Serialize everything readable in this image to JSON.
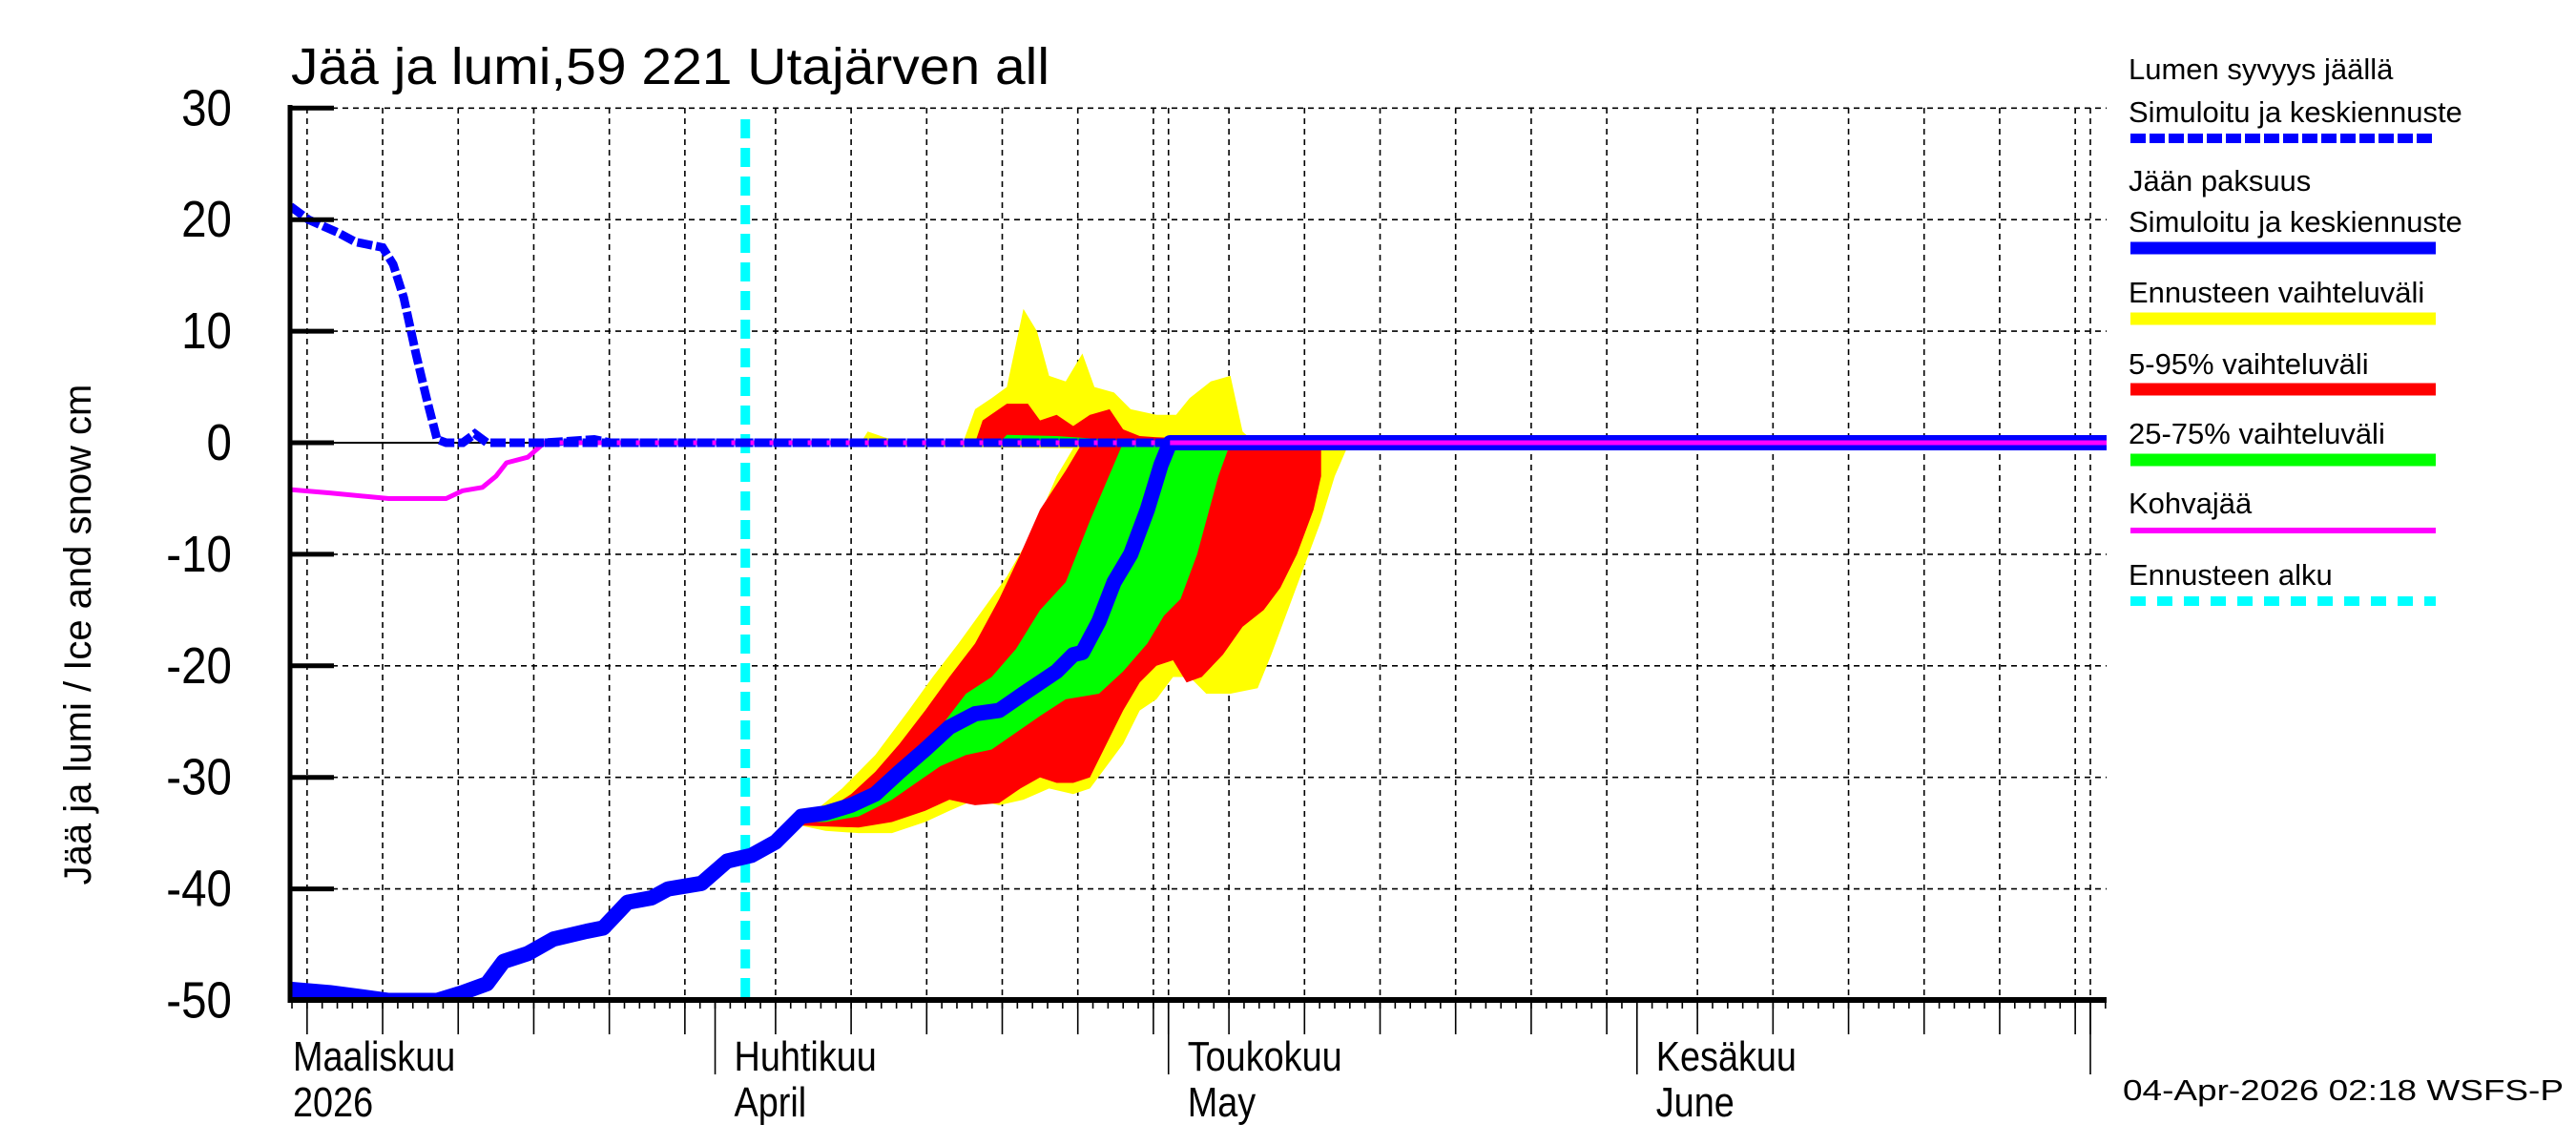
{
  "title": "Jää ja lumi,59 221 Utajärven all",
  "y_axis_label": "Jää ja lumi / Ice and snow    cm",
  "footer": "04-Apr-2026 02:18 WSFS-P",
  "x_axis": {
    "months": [
      {
        "line1": "Maaliskuu",
        "line2": "2026",
        "start_day": 0
      },
      {
        "line1": "Huhtikuu",
        "line2": "April",
        "start_day": 31
      },
      {
        "line1": "Toukokuu",
        "line2": "May",
        "start_day": 61
      },
      {
        "line1": "Kesäkuu",
        "line2": "June",
        "start_day": 92
      }
    ],
    "day_origin": "2026-03-01",
    "range_days": [
      2.9,
      123.1
    ]
  },
  "legend": [
    {
      "label_lines": [
        "Lumen syvyys jäällä",
        "Simuloitu ja keskiennuste"
      ],
      "color": "#0000ff",
      "style": "dashed-thick"
    },
    {
      "label_lines": [
        "Jään paksuus",
        "Simuloitu ja keskiennuste"
      ],
      "color": "#0000ff",
      "style": "solid-thick"
    },
    {
      "label_lines": [
        "Ennusteen vaihteluväli"
      ],
      "color": "#ffff00",
      "style": "band"
    },
    {
      "label_lines": [
        "5-95% vaihteluväli"
      ],
      "color": "#ff0000",
      "style": "band"
    },
    {
      "label_lines": [
        "25-75% vaihteluväli"
      ],
      "color": "#00ff00",
      "style": "band"
    },
    {
      "label_lines": [
        "Kohvajää"
      ],
      "color": "#ff00ff",
      "style": "solid-thin"
    },
    {
      "label_lines": [
        "Ennusteen alku"
      ],
      "color": "#00ffff",
      "style": "dotted"
    }
  ],
  "chart_data": {
    "type": "area",
    "title": "Jää ja lumi,59 221 Utajärven all",
    "xlabel": "",
    "ylabel": "Jää ja lumi / Ice and snow    cm",
    "ylim": [
      -50,
      30
    ],
    "yticks": [
      30,
      20,
      10,
      0,
      -10,
      -20,
      -30,
      -40,
      -50
    ],
    "x_unit": "days since 2026-03-01",
    "xlim": [
      2.9,
      123.1
    ],
    "grid": true,
    "grid_days": [
      4,
      9,
      14,
      19,
      24,
      29,
      35,
      40,
      45,
      50,
      55,
      60,
      61,
      65,
      70,
      75,
      80,
      85,
      90,
      96,
      101,
      106,
      111,
      116,
      121,
      122
    ],
    "forecast_start_day": 33,
    "legend_position": "right",
    "series": [
      {
        "name": "Lumen syvyys jäällä — Simuloitu ja keskiennuste",
        "color": "#0000ff",
        "style": "dashed",
        "points": [
          [
            2.9,
            21.2
          ],
          [
            4.1,
            20.0
          ],
          [
            6.1,
            18.8
          ],
          [
            7.2,
            18.0
          ],
          [
            9.0,
            17.5
          ],
          [
            9.7,
            16.0
          ],
          [
            10.4,
            13.0
          ],
          [
            11.2,
            8.0
          ],
          [
            11.9,
            4.0
          ],
          [
            12.6,
            0.3
          ],
          [
            13.2,
            0
          ],
          [
            14.3,
            0
          ],
          [
            15.1,
            0.8
          ],
          [
            15.9,
            0
          ],
          [
            19.7,
            0
          ],
          [
            23.0,
            0.3
          ],
          [
            24.1,
            0
          ],
          [
            123.1,
            0
          ]
        ]
      },
      {
        "name": "Jään paksuus — Simuloitu ja keskiennuste",
        "color": "#0000ff",
        "style": "solid-thick",
        "points": [
          [
            2.9,
            -49
          ],
          [
            5.5,
            -49.3
          ],
          [
            9.4,
            -50
          ],
          [
            12.6,
            -50
          ],
          [
            14.3,
            -49.3
          ],
          [
            15.9,
            -48.5
          ],
          [
            17.0,
            -46.5
          ],
          [
            18.6,
            -45.8
          ],
          [
            20.3,
            -44.5
          ],
          [
            22.5,
            -43.8
          ],
          [
            23.6,
            -43.5
          ],
          [
            25.2,
            -41.2
          ],
          [
            26.8,
            -40.8
          ],
          [
            27.9,
            -40.0
          ],
          [
            30.1,
            -39.5
          ],
          [
            31.8,
            -37.5
          ],
          [
            33.4,
            -37.0
          ],
          [
            35.0,
            -35.8
          ],
          [
            36.7,
            -33.5
          ],
          [
            38.3,
            -33.2
          ],
          [
            40.0,
            -32.5
          ],
          [
            41.6,
            -31.5
          ],
          [
            43.2,
            -29.5
          ],
          [
            44.9,
            -27.5
          ],
          [
            46.5,
            -25.5
          ],
          [
            48.2,
            -24.3
          ],
          [
            49.8,
            -24.0
          ],
          [
            51.4,
            -22.5
          ],
          [
            53.6,
            -20.5
          ],
          [
            54.7,
            -19.0
          ],
          [
            55.3,
            -18.8
          ],
          [
            56.4,
            -16.0
          ],
          [
            57.4,
            -12.5
          ],
          [
            58.5,
            -10.0
          ],
          [
            59.6,
            -6.0
          ],
          [
            60.5,
            -2.0
          ],
          [
            61.1,
            0
          ],
          [
            123.1,
            0
          ]
        ]
      },
      {
        "name": "Kohvajää",
        "color": "#ff00ff",
        "style": "solid-thin",
        "points": [
          [
            2.9,
            -4.2
          ],
          [
            5.5,
            -4.5
          ],
          [
            9.4,
            -5.0
          ],
          [
            13.2,
            -5.0
          ],
          [
            14.3,
            -4.3
          ],
          [
            15.6,
            -4.0
          ],
          [
            16.5,
            -3.0
          ],
          [
            17.2,
            -1.8
          ],
          [
            18.6,
            -1.3
          ],
          [
            19.7,
            0
          ],
          [
            123.1,
            0
          ]
        ]
      }
    ],
    "bands": [
      {
        "name": "Ennusteen vaihteluväli",
        "color": "#ffff00",
        "polygon": [
          [
            36.6,
            -33.5
          ],
          [
            37.8,
            -32.8
          ],
          [
            39.4,
            -31
          ],
          [
            41.6,
            -28
          ],
          [
            43.8,
            -24
          ],
          [
            45.4,
            -21
          ],
          [
            47.1,
            -18
          ],
          [
            48.7,
            -15
          ],
          [
            50.3,
            -12
          ],
          [
            52.0,
            -8
          ],
          [
            53.6,
            -3
          ],
          [
            54.7,
            -0.5
          ],
          [
            40.5,
            -0.3
          ],
          [
            41.1,
            1
          ],
          [
            42.2,
            0.5
          ],
          [
            43.6,
            0
          ],
          [
            47.4,
            0
          ],
          [
            48.2,
            3
          ],
          [
            49.3,
            4
          ],
          [
            50.3,
            5
          ],
          [
            51.4,
            12
          ],
          [
            52.3,
            10
          ],
          [
            53.1,
            6
          ],
          [
            54.2,
            5.5
          ],
          [
            55.3,
            8
          ],
          [
            56.1,
            5
          ],
          [
            57.4,
            4.5
          ],
          [
            58.5,
            3
          ],
          [
            60.2,
            2.5
          ],
          [
            61.5,
            2.5
          ],
          [
            62.4,
            4
          ],
          [
            63.8,
            5.5
          ],
          [
            65.1,
            6
          ],
          [
            65.9,
            1
          ],
          [
            66.7,
            0
          ],
          [
            72.8,
            -0.5
          ],
          [
            72.0,
            -3
          ],
          [
            71.1,
            -7
          ],
          [
            70.0,
            -11
          ],
          [
            68.9,
            -15
          ],
          [
            67.8,
            -19
          ],
          [
            66.9,
            -22
          ],
          [
            65.1,
            -22.5
          ],
          [
            63.5,
            -22.5
          ],
          [
            62.4,
            -21
          ],
          [
            61.3,
            -21
          ],
          [
            60.2,
            -23
          ],
          [
            59.1,
            -24
          ],
          [
            58.0,
            -27
          ],
          [
            56.9,
            -29
          ],
          [
            55.8,
            -31
          ],
          [
            54.7,
            -31.5
          ],
          [
            53.1,
            -31
          ],
          [
            51.4,
            -32
          ],
          [
            49.8,
            -32.5
          ],
          [
            48.2,
            -32
          ],
          [
            46.5,
            -33
          ],
          [
            44.9,
            -34
          ],
          [
            42.7,
            -35
          ],
          [
            40.5,
            -35
          ],
          [
            38.3,
            -34.8
          ],
          [
            36.6,
            -34.3
          ]
        ]
      },
      {
        "name": "5-95% vaihteluväli",
        "color": "#ff0000",
        "polygon": [
          [
            36.6,
            -33.5
          ],
          [
            38.3,
            -33
          ],
          [
            40.0,
            -31.5
          ],
          [
            41.6,
            -29.5
          ],
          [
            43.2,
            -27
          ],
          [
            44.9,
            -24
          ],
          [
            46.5,
            -21
          ],
          [
            48.2,
            -18
          ],
          [
            49.8,
            -14
          ],
          [
            51.2,
            -10
          ],
          [
            52.5,
            -6
          ],
          [
            54.2,
            -2.5
          ],
          [
            55.3,
            0
          ],
          [
            48.2,
            0
          ],
          [
            48.7,
            2
          ],
          [
            50.3,
            3.5
          ],
          [
            51.7,
            3.5
          ],
          [
            52.5,
            2
          ],
          [
            53.6,
            2.5
          ],
          [
            54.7,
            1.5
          ],
          [
            55.8,
            2.5
          ],
          [
            57.1,
            3
          ],
          [
            58.0,
            1.2
          ],
          [
            59.1,
            0.6
          ],
          [
            60.2,
            0.5
          ],
          [
            71.1,
            0
          ],
          [
            71.1,
            -3
          ],
          [
            70.6,
            -6
          ],
          [
            69.5,
            -10
          ],
          [
            68.4,
            -13
          ],
          [
            67.3,
            -15
          ],
          [
            65.9,
            -16.5
          ],
          [
            64.6,
            -19
          ],
          [
            63.2,
            -21
          ],
          [
            62.2,
            -21.5
          ],
          [
            61.3,
            -19.5
          ],
          [
            60.2,
            -20
          ],
          [
            59.1,
            -21.5
          ],
          [
            58.0,
            -24
          ],
          [
            56.9,
            -27
          ],
          [
            55.8,
            -30
          ],
          [
            54.7,
            -30.5
          ],
          [
            53.6,
            -30.5
          ],
          [
            52.5,
            -30
          ],
          [
            51.2,
            -31
          ],
          [
            49.8,
            -32.3
          ],
          [
            48.2,
            -32.5
          ],
          [
            46.5,
            -32
          ],
          [
            44.9,
            -33
          ],
          [
            42.7,
            -34
          ],
          [
            40.5,
            -34.5
          ],
          [
            38.3,
            -34.4
          ],
          [
            36.6,
            -34.3
          ]
        ]
      },
      {
        "name": "25-75% vaihteluväli",
        "color": "#00ff00",
        "polygon": [
          [
            36.6,
            -33.7
          ],
          [
            38.3,
            -33.3
          ],
          [
            40.5,
            -32
          ],
          [
            42.7,
            -30
          ],
          [
            44.3,
            -28
          ],
          [
            45.9,
            -25.5
          ],
          [
            47.6,
            -22.5
          ],
          [
            49.3,
            -21
          ],
          [
            50.9,
            -18.5
          ],
          [
            52.5,
            -15
          ],
          [
            54.2,
            -12.5
          ],
          [
            55.8,
            -7
          ],
          [
            56.9,
            -3.5
          ],
          [
            58.0,
            0
          ],
          [
            49.8,
            0
          ],
          [
            50.3,
            0.7
          ],
          [
            53.6,
            0.6
          ],
          [
            60.2,
            0
          ],
          [
            65.1,
            0
          ],
          [
            64.3,
            -3
          ],
          [
            63.5,
            -7
          ],
          [
            62.9,
            -10
          ],
          [
            61.8,
            -14
          ],
          [
            60.7,
            -15.5
          ],
          [
            59.6,
            -18
          ],
          [
            58.0,
            -20.5
          ],
          [
            56.4,
            -22.5
          ],
          [
            54.2,
            -23
          ],
          [
            52.5,
            -24.5
          ],
          [
            50.9,
            -26
          ],
          [
            49.3,
            -27.5
          ],
          [
            47.6,
            -28
          ],
          [
            45.9,
            -29
          ],
          [
            44.3,
            -30.5
          ],
          [
            42.7,
            -32
          ],
          [
            40.5,
            -33.5
          ],
          [
            38.3,
            -34
          ],
          [
            36.6,
            -34
          ]
        ]
      }
    ]
  }
}
